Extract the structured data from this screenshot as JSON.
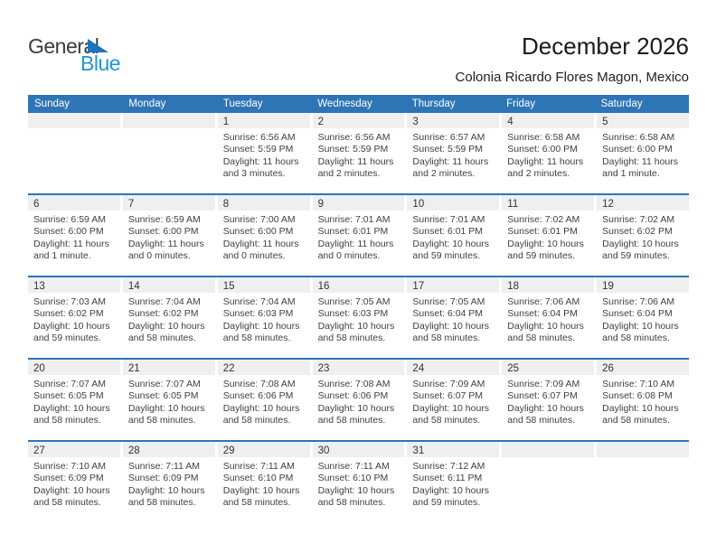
{
  "logo": {
    "text_top": "General",
    "text_bottom": "Blue"
  },
  "header": {
    "title": "December 2026",
    "subtitle": "Colonia Ricardo Flores Magon, Mexico"
  },
  "weekdays": [
    "Sunday",
    "Monday",
    "Tuesday",
    "Wednesday",
    "Thursday",
    "Friday",
    "Saturday"
  ],
  "colors": {
    "header_bar": "#2E75B6",
    "week_divider": "#2E75B6",
    "day_band": "#EFEFEF",
    "header_text": "#FFFFFF",
    "body_text": "#3F3F3F",
    "logo_blue": "#2196D6",
    "logo_triangle": "#1C75BC"
  },
  "weeks": [
    [
      null,
      null,
      {
        "day": "1",
        "sunrise": "Sunrise: 6:56 AM",
        "sunset": "Sunset: 5:59 PM",
        "daylight": "Daylight: 11 hours and 3 minutes."
      },
      {
        "day": "2",
        "sunrise": "Sunrise: 6:56 AM",
        "sunset": "Sunset: 5:59 PM",
        "daylight": "Daylight: 11 hours and 2 minutes."
      },
      {
        "day": "3",
        "sunrise": "Sunrise: 6:57 AM",
        "sunset": "Sunset: 5:59 PM",
        "daylight": "Daylight: 11 hours and 2 minutes."
      },
      {
        "day": "4",
        "sunrise": "Sunrise: 6:58 AM",
        "sunset": "Sunset: 6:00 PM",
        "daylight": "Daylight: 11 hours and 2 minutes."
      },
      {
        "day": "5",
        "sunrise": "Sunrise: 6:58 AM",
        "sunset": "Sunset: 6:00 PM",
        "daylight": "Daylight: 11 hours and 1 minute."
      }
    ],
    [
      {
        "day": "6",
        "sunrise": "Sunrise: 6:59 AM",
        "sunset": "Sunset: 6:00 PM",
        "daylight": "Daylight: 11 hours and 1 minute."
      },
      {
        "day": "7",
        "sunrise": "Sunrise: 6:59 AM",
        "sunset": "Sunset: 6:00 PM",
        "daylight": "Daylight: 11 hours and 0 minutes."
      },
      {
        "day": "8",
        "sunrise": "Sunrise: 7:00 AM",
        "sunset": "Sunset: 6:00 PM",
        "daylight": "Daylight: 11 hours and 0 minutes."
      },
      {
        "day": "9",
        "sunrise": "Sunrise: 7:01 AM",
        "sunset": "Sunset: 6:01 PM",
        "daylight": "Daylight: 11 hours and 0 minutes."
      },
      {
        "day": "10",
        "sunrise": "Sunrise: 7:01 AM",
        "sunset": "Sunset: 6:01 PM",
        "daylight": "Daylight: 10 hours and 59 minutes."
      },
      {
        "day": "11",
        "sunrise": "Sunrise: 7:02 AM",
        "sunset": "Sunset: 6:01 PM",
        "daylight": "Daylight: 10 hours and 59 minutes."
      },
      {
        "day": "12",
        "sunrise": "Sunrise: 7:02 AM",
        "sunset": "Sunset: 6:02 PM",
        "daylight": "Daylight: 10 hours and 59 minutes."
      }
    ],
    [
      {
        "day": "13",
        "sunrise": "Sunrise: 7:03 AM",
        "sunset": "Sunset: 6:02 PM",
        "daylight": "Daylight: 10 hours and 59 minutes."
      },
      {
        "day": "14",
        "sunrise": "Sunrise: 7:04 AM",
        "sunset": "Sunset: 6:02 PM",
        "daylight": "Daylight: 10 hours and 58 minutes."
      },
      {
        "day": "15",
        "sunrise": "Sunrise: 7:04 AM",
        "sunset": "Sunset: 6:03 PM",
        "daylight": "Daylight: 10 hours and 58 minutes."
      },
      {
        "day": "16",
        "sunrise": "Sunrise: 7:05 AM",
        "sunset": "Sunset: 6:03 PM",
        "daylight": "Daylight: 10 hours and 58 minutes."
      },
      {
        "day": "17",
        "sunrise": "Sunrise: 7:05 AM",
        "sunset": "Sunset: 6:04 PM",
        "daylight": "Daylight: 10 hours and 58 minutes."
      },
      {
        "day": "18",
        "sunrise": "Sunrise: 7:06 AM",
        "sunset": "Sunset: 6:04 PM",
        "daylight": "Daylight: 10 hours and 58 minutes."
      },
      {
        "day": "19",
        "sunrise": "Sunrise: 7:06 AM",
        "sunset": "Sunset: 6:04 PM",
        "daylight": "Daylight: 10 hours and 58 minutes."
      }
    ],
    [
      {
        "day": "20",
        "sunrise": "Sunrise: 7:07 AM",
        "sunset": "Sunset: 6:05 PM",
        "daylight": "Daylight: 10 hours and 58 minutes."
      },
      {
        "day": "21",
        "sunrise": "Sunrise: 7:07 AM",
        "sunset": "Sunset: 6:05 PM",
        "daylight": "Daylight: 10 hours and 58 minutes."
      },
      {
        "day": "22",
        "sunrise": "Sunrise: 7:08 AM",
        "sunset": "Sunset: 6:06 PM",
        "daylight": "Daylight: 10 hours and 58 minutes."
      },
      {
        "day": "23",
        "sunrise": "Sunrise: 7:08 AM",
        "sunset": "Sunset: 6:06 PM",
        "daylight": "Daylight: 10 hours and 58 minutes."
      },
      {
        "day": "24",
        "sunrise": "Sunrise: 7:09 AM",
        "sunset": "Sunset: 6:07 PM",
        "daylight": "Daylight: 10 hours and 58 minutes."
      },
      {
        "day": "25",
        "sunrise": "Sunrise: 7:09 AM",
        "sunset": "Sunset: 6:07 PM",
        "daylight": "Daylight: 10 hours and 58 minutes."
      },
      {
        "day": "26",
        "sunrise": "Sunrise: 7:10 AM",
        "sunset": "Sunset: 6:08 PM",
        "daylight": "Daylight: 10 hours and 58 minutes."
      }
    ],
    [
      {
        "day": "27",
        "sunrise": "Sunrise: 7:10 AM",
        "sunset": "Sunset: 6:09 PM",
        "daylight": "Daylight: 10 hours and 58 minutes."
      },
      {
        "day": "28",
        "sunrise": "Sunrise: 7:11 AM",
        "sunset": "Sunset: 6:09 PM",
        "daylight": "Daylight: 10 hours and 58 minutes."
      },
      {
        "day": "29",
        "sunrise": "Sunrise: 7:11 AM",
        "sunset": "Sunset: 6:10 PM",
        "daylight": "Daylight: 10 hours and 58 minutes."
      },
      {
        "day": "30",
        "sunrise": "Sunrise: 7:11 AM",
        "sunset": "Sunset: 6:10 PM",
        "daylight": "Daylight: 10 hours and 58 minutes."
      },
      {
        "day": "31",
        "sunrise": "Sunrise: 7:12 AM",
        "sunset": "Sunset: 6:11 PM",
        "daylight": "Daylight: 10 hours and 59 minutes."
      },
      null,
      null
    ]
  ]
}
